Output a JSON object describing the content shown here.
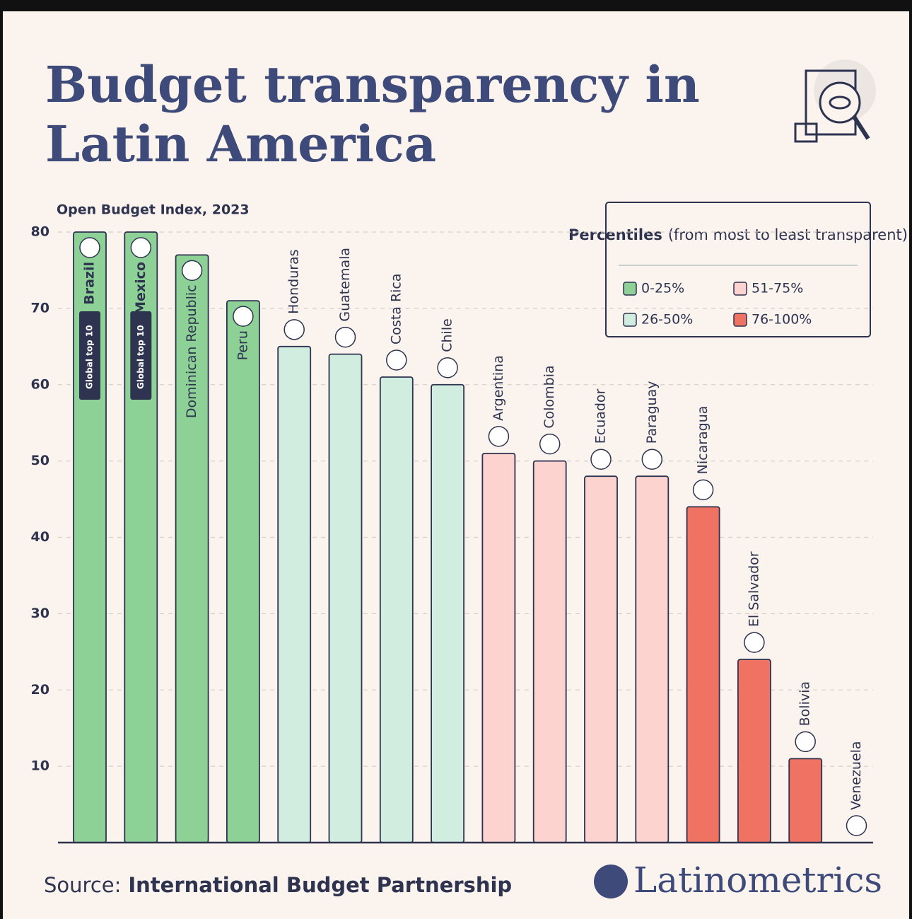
{
  "chart_data": {
    "type": "bar",
    "title_lines": [
      "Budget transparency in",
      "Latin America"
    ],
    "subtitle": "Open Budget Index, 2023",
    "categories": [
      "Brazil",
      "Mexico",
      "Dominican Republic",
      "Peru",
      "Honduras",
      "Guatemala",
      "Costa Rica",
      "Chile",
      "Argentina",
      "Colombia",
      "Ecuador",
      "Paraguay",
      "Nicaragua",
      "El Salvador",
      "Bolivia",
      "Venezuela"
    ],
    "values": [
      80,
      80,
      77,
      71,
      65,
      64,
      61,
      60,
      51,
      50,
      48,
      48,
      44,
      24,
      11,
      0
    ],
    "colors": [
      "#8dd197",
      "#8dd197",
      "#8dd197",
      "#8dd197",
      "#d0ede0",
      "#d0ede0",
      "#d0ede0",
      "#d0ede0",
      "#fdd3cf",
      "#fdd3cf",
      "#fdd3cf",
      "#fdd3cf",
      "#ef7262",
      "#ef7262",
      "#ef7262",
      "#ef7262"
    ],
    "ylim": [
      0,
      80
    ],
    "yticks": [
      10,
      20,
      30,
      40,
      50,
      60,
      70,
      80
    ],
    "grid": true,
    "annotations": [
      {
        "text": "Global top 10",
        "category": "Brazil"
      },
      {
        "text": "Global top 10",
        "category": "Mexico"
      }
    ],
    "legend_title": "Percentiles",
    "legend_subtitle": "(from most to least transparent)",
    "legend": [
      {
        "name": "0-25%",
        "color": "#8dd197"
      },
      {
        "name": "51-75%",
        "color": "#fdd3cf"
      },
      {
        "name": "26-50%",
        "color": "#d0ede0"
      },
      {
        "name": "76-100%",
        "color": "#ef7262"
      }
    ],
    "source_label": "Source:",
    "source": "International Budget Partnership",
    "brand": "Latinometrics"
  }
}
